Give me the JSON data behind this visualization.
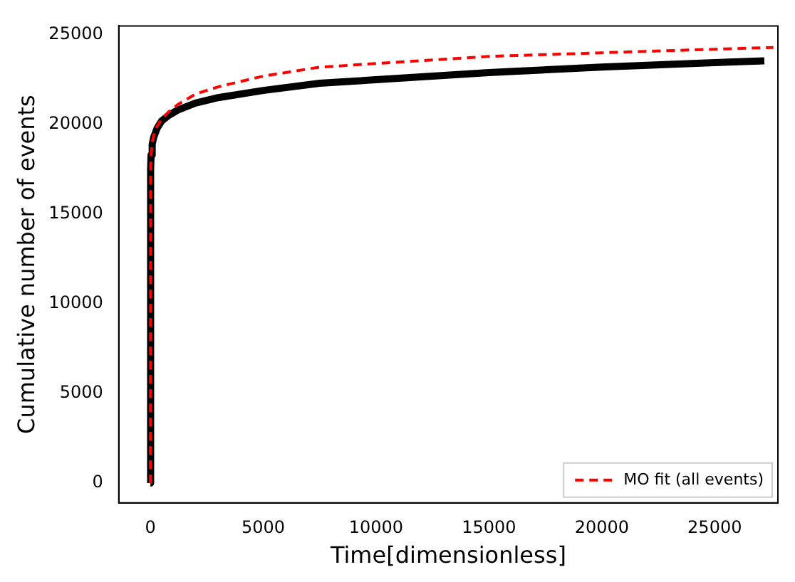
{
  "chart_data": {
    "type": "line",
    "xlabel": "Time[dimensionless]",
    "ylabel": "Cumulative number of events",
    "xlim": [
      -1400,
      27800
    ],
    "ylim": [
      -1100,
      25500
    ],
    "xticks": [
      0,
      5000,
      10000,
      15000,
      20000,
      25000
    ],
    "yticks": [
      0,
      5000,
      10000,
      15000,
      20000,
      25000
    ],
    "grid": false,
    "legend": "bottom right",
    "marker": "none",
    "series": [
      {
        "color": "#000000",
        "line_style": "solid",
        "x": [
          0,
          10,
          30,
          80,
          150,
          300,
          500,
          800,
          1200,
          2000,
          3000,
          5000,
          7500,
          10000,
          15000,
          20000,
          25000,
          27200
        ],
        "values": [
          0,
          17500,
          18300,
          18900,
          19300,
          19800,
          20200,
          20500,
          20800,
          21200,
          21500,
          21900,
          22300,
          22500,
          22900,
          23200,
          23450,
          23550
        ]
      },
      {
        "name": "MO fit (all events)",
        "color": "#ff0000",
        "line_style": "dashed",
        "x": [
          0,
          10,
          30,
          80,
          150,
          300,
          500,
          800,
          1200,
          2000,
          3000,
          5000,
          7500,
          10000,
          15000,
          20000,
          25000,
          27600
        ],
        "values": [
          0,
          17500,
          18300,
          19000,
          19400,
          19900,
          20300,
          20700,
          21100,
          21700,
          22100,
          22700,
          23200,
          23400,
          23800,
          24000,
          24200,
          24300
        ]
      }
    ]
  }
}
